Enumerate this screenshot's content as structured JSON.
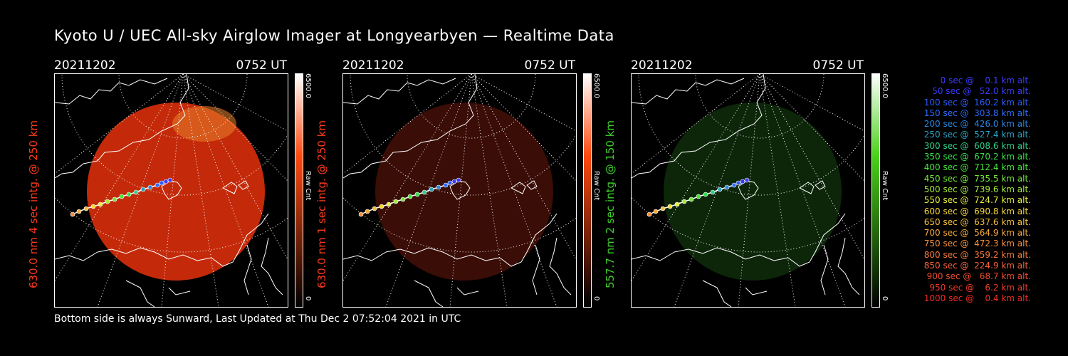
{
  "title": "Kyoto U / UEC All-sky Airglow Imager at Longyearbyen — Realtime Data",
  "panels": [
    {
      "date": "20211202",
      "time": "0752 UT",
      "label": "630.0 nm 4 sec intg. @ 250 km",
      "label_color": "#ff3a1a",
      "cbar_max": "6500.0",
      "cbar_unit": "Raw Cnt",
      "cbar_min": "0",
      "image_color": "#c42a0a",
      "bar_color": "#ff4a10"
    },
    {
      "date": "20211202",
      "time": "0752 UT",
      "label": "630.0 nm 1 sec intg. @ 250 km",
      "label_color": "#ff3a1a",
      "cbar_max": "6500.0",
      "cbar_unit": "Raw Cnt",
      "cbar_min": "0",
      "image_color": "#3a0d07",
      "bar_color": "#ff4a10"
    },
    {
      "date": "20211202",
      "time": "0752 UT",
      "label": "557.7 nm 2 sec intg. @ 150 km",
      "label_color": "#3ecf2a",
      "cbar_max": "6500.0",
      "cbar_unit": "Raw Cnt",
      "cbar_min": "0",
      "image_color": "#0d260a",
      "bar_color": "#4ad21a"
    }
  ],
  "footer": "Bottom side is always Sunward, Last Updated at Thu Dec  2 07:52:04 2021 in UTC",
  "legend": [
    {
      "text": "   0 sec @    0.1 km alt.",
      "color": "#3b3bff"
    },
    {
      "text": "  50 sec @   52.0 km alt.",
      "color": "#3b3bff"
    },
    {
      "text": " 100 sec @  160.2 km alt.",
      "color": "#2c5cff"
    },
    {
      "text": " 150 sec @  303.8 km alt.",
      "color": "#2c6cff"
    },
    {
      "text": " 200 sec @  426.0 km alt.",
      "color": "#2a86e0"
    },
    {
      "text": " 250 sec @  527.4 km alt.",
      "color": "#2aa3c3"
    },
    {
      "text": " 300 sec @  608.6 km alt.",
      "color": "#2ecf8a"
    },
    {
      "text": " 350 sec @  670.2 km alt.",
      "color": "#36e04a"
    },
    {
      "text": " 400 sec @  712.4 km alt.",
      "color": "#44e63a"
    },
    {
      "text": " 450 sec @  735.5 km alt.",
      "color": "#72e83a"
    },
    {
      "text": " 500 sec @  739.6 km alt.",
      "color": "#a6ec3a"
    },
    {
      "text": " 550 sec @  724.7 km alt.",
      "color": "#e6ee3a"
    },
    {
      "text": " 600 sec @  690.8 km alt.",
      "color": "#f5d83a"
    },
    {
      "text": " 650 sec @  637.6 km alt.",
      "color": "#f5c03a"
    },
    {
      "text": " 700 sec @  564.9 km alt.",
      "color": "#f6a83a"
    },
    {
      "text": " 750 sec @  472.3 km alt.",
      "color": "#f6903a"
    },
    {
      "text": " 800 sec @  359.2 km alt.",
      "color": "#f6783a"
    },
    {
      "text": " 850 sec @  224.9 km alt.",
      "color": "#f6603a"
    },
    {
      "text": " 900 sec @   68.7 km alt.",
      "color": "#f04a30"
    },
    {
      "text": " 950 sec @    6.2 km alt.",
      "color": "#f03a2a"
    },
    {
      "text": "1000 sec @    0.4 km alt.",
      "color": "#f02a22"
    }
  ]
}
